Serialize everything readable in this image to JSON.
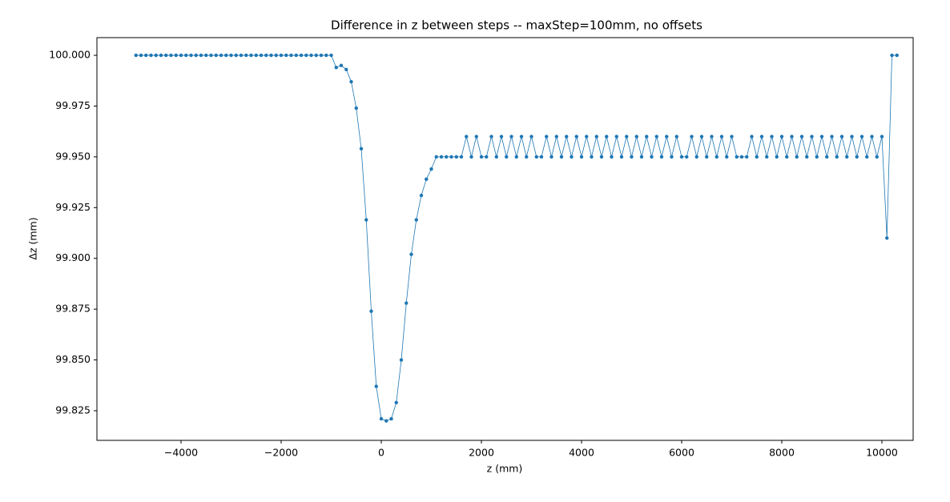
{
  "chart_data": {
    "type": "line",
    "title": "Difference in z between steps -- maxStep=100mm, no offsets",
    "x_label": "z (mm)",
    "y_label": "Δz (mm)",
    "x": [
      -4900,
      -4800,
      -4700,
      -4600,
      -4500,
      -4400,
      -4300,
      -4200,
      -4100,
      -4000,
      -3900,
      -3800,
      -3700,
      -3600,
      -3500,
      -3400,
      -3300,
      -3200,
      -3100,
      -3000,
      -2900,
      -2800,
      -2700,
      -2600,
      -2500,
      -2400,
      -2300,
      -2200,
      -2100,
      -2000,
      -1900,
      -1800,
      -1700,
      -1600,
      -1500,
      -1400,
      -1300,
      -1200,
      -1100,
      -1000,
      -900,
      -800,
      -700,
      -600,
      -500,
      -400,
      -300,
      -200,
      -100,
      0,
      100,
      200,
      300,
      400,
      500,
      600,
      700,
      800,
      900,
      1000,
      1100,
      1200,
      1300,
      1400,
      1500,
      1600,
      1700,
      1800,
      1900,
      2000,
      2100,
      2200,
      2300,
      2400,
      2500,
      2600,
      2700,
      2800,
      2900,
      3000,
      3100,
      3200,
      3300,
      3400,
      3500,
      3600,
      3700,
      3800,
      3900,
      4000,
      4100,
      4200,
      4300,
      4400,
      4500,
      4600,
      4700,
      4800,
      4900,
      5000,
      5100,
      5200,
      5300,
      5400,
      5500,
      5600,
      5700,
      5800,
      5900,
      6000,
      6100,
      6200,
      6300,
      6400,
      6500,
      6600,
      6700,
      6800,
      6900,
      7000,
      7100,
      7200,
      7300,
      7400,
      7500,
      7600,
      7700,
      7800,
      7900,
      8000,
      8100,
      8200,
      8300,
      8400,
      8500,
      8600,
      8700,
      8800,
      8900,
      9000,
      9100,
      9200,
      9300,
      9400,
      9500,
      9600,
      9700,
      9800,
      9900,
      10000,
      10100,
      10200,
      10300
    ],
    "series": [
      {
        "color": "#1f77b4",
        "values": [
          100,
          100,
          100,
          100,
          100,
          100,
          100,
          100,
          100,
          100,
          100,
          100,
          100,
          100,
          100,
          100,
          100,
          100,
          100,
          100,
          100,
          100,
          100,
          100,
          100,
          100,
          100,
          100,
          100,
          100,
          100,
          100,
          100,
          100,
          100,
          100,
          100,
          100,
          100,
          100,
          99.994,
          99.995,
          99.993,
          99.987,
          99.974,
          99.954,
          99.919,
          99.874,
          99.837,
          99.821,
          99.82,
          99.821,
          99.829,
          99.85,
          99.878,
          99.902,
          99.919,
          99.931,
          99.939,
          99.944,
          99.95,
          99.95,
          99.95,
          99.95,
          99.95,
          99.95,
          99.96,
          99.95,
          99.96,
          99.95,
          99.95,
          99.96,
          99.95,
          99.96,
          99.95,
          99.96,
          99.95,
          99.96,
          99.95,
          99.96,
          99.95,
          99.95,
          99.96,
          99.95,
          99.96,
          99.95,
          99.96,
          99.95,
          99.96,
          99.95,
          99.96,
          99.95,
          99.96,
          99.95,
          99.96,
          99.95,
          99.96,
          99.95,
          99.96,
          99.95,
          99.96,
          99.95,
          99.96,
          99.95,
          99.96,
          99.95,
          99.96,
          99.95,
          99.96,
          99.95,
          99.95,
          99.96,
          99.95,
          99.96,
          99.95,
          99.96,
          99.95,
          99.96,
          99.95,
          99.96,
          99.95,
          99.95,
          99.95,
          99.96,
          99.95,
          99.96,
          99.95,
          99.96,
          99.95,
          99.96,
          99.95,
          99.96,
          99.95,
          99.96,
          99.95,
          99.96,
          99.95,
          99.96,
          99.95,
          99.96,
          99.95,
          99.96,
          99.95,
          99.96,
          99.95,
          99.96,
          99.95,
          99.96,
          99.95,
          99.96,
          99.91,
          100,
          100
        ]
      }
    ],
    "xlim": [
      -5680,
      10624
    ],
    "ylim": [
      99.8104,
      100.0087
    ],
    "xticks": [
      {
        "value": -4000,
        "label": "−4000"
      },
      {
        "value": -2000,
        "label": "−2000"
      },
      0,
      2000,
      4000,
      6000,
      8000,
      10000
    ],
    "yticks": [
      {
        "value": 99.825,
        "label": "99.825"
      },
      {
        "value": 99.85,
        "label": "99.850"
      },
      {
        "value": 99.875,
        "label": "99.875"
      },
      {
        "value": 99.9,
        "label": "99.900"
      },
      {
        "value": 99.925,
        "label": "99.925"
      },
      {
        "value": 99.95,
        "label": "99.950"
      },
      {
        "value": 99.975,
        "label": "99.975"
      },
      {
        "value": 100,
        "label": "100.000"
      }
    ]
  }
}
